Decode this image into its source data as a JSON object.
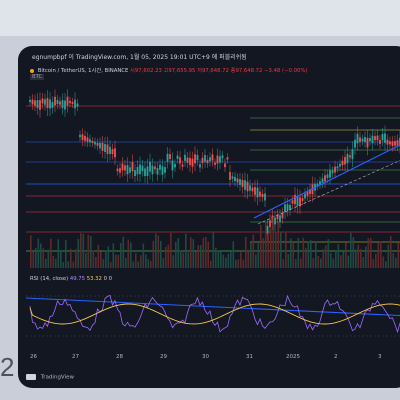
{
  "slide": {
    "number": "2"
  },
  "header": {
    "caption": "egnumpbpf 이 TradingView.com, 1월 05, 2025 19:01 UTC+9 에 퍼블리쉬됨"
  },
  "symbol": {
    "name": "Bitcoin / TetherUS, 1시간, BINANCE",
    "ohlc_text": "시97,602.23  고97,655.95  저97,648.72  종97,648.72  −3.48 (−0.00%)",
    "sub_label": "BTC"
  },
  "rsi": {
    "label": "RSI (14, close)",
    "value1": "49.75",
    "value2": "53.32",
    "extra": "0  0"
  },
  "x_axis": {
    "ticks": [
      "26",
      "27",
      "28",
      "29",
      "30",
      "31",
      "2025",
      "2",
      "3"
    ]
  },
  "footer": {
    "credit": "TradingView"
  },
  "colors": {
    "background": "#131722",
    "up": "#26a69a",
    "down": "#ef5350",
    "hline_blue": "#2962ff",
    "hline_red": "#f23645",
    "hline_green": "#4caf50",
    "hline_yellow": "#cddc39",
    "rsi": "#9c6bff",
    "rsi_ma": "#f7c948"
  }
}
